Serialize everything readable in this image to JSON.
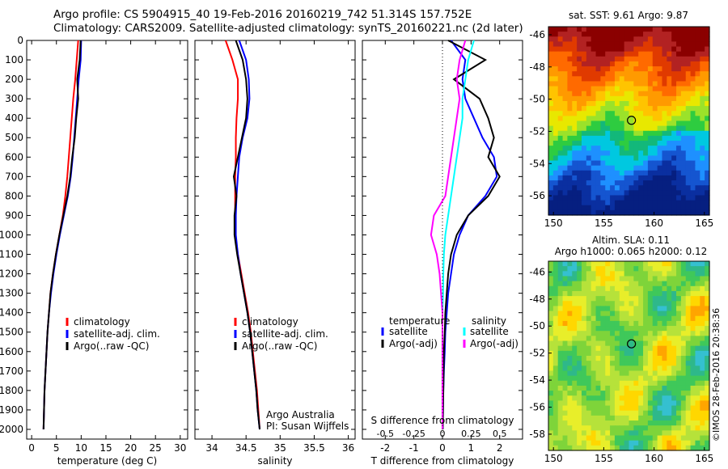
{
  "header": {
    "line1": "Argo profile: CS 5904915_40 19-Feb-2016 20160219_742 51.314S 157.752E",
    "line2": "Climatology: CARS2009. Satellite-adjusted climatology: synTS_20160221.nc (2d later)"
  },
  "watermark": "©IMOS 28-Feb-2016 20:38:36",
  "colors": {
    "climatology": "#ff0000",
    "satellite": "#0000ff",
    "argo": "#000000",
    "salinity_satellite": "#00ffff",
    "salinity_argo": "#ff00ff"
  },
  "chart_data": [
    {
      "type": "line",
      "panel": "temperature",
      "xlabel": "temperature (deg C)",
      "ylabel": "",
      "xlim": [
        -1,
        31.5
      ],
      "ylim": [
        2050,
        0
      ],
      "xticks": [
        0,
        5,
        10,
        15,
        20,
        25,
        30
      ],
      "yticks": [
        0,
        100,
        200,
        300,
        400,
        500,
        600,
        700,
        800,
        900,
        1000,
        1100,
        1200,
        1300,
        1400,
        1500,
        1600,
        1700,
        1800,
        1900,
        2000
      ],
      "legend": {
        "position": "lower-right",
        "entries": [
          "climatology",
          "satellite-adj. clim.",
          "Argo(..raw -QC)"
        ]
      },
      "series": [
        {
          "name": "climatology",
          "color": "#ff0000",
          "x": [
            9.4,
            9.1,
            8.8,
            8.4,
            8.1,
            7.8,
            7.5,
            7.2,
            6.8,
            6.3,
            5.6,
            4.9,
            4.3,
            3.8,
            3.5,
            3.2,
            3.0,
            2.8,
            2.6,
            2.5,
            2.4
          ],
          "y": [
            0,
            100,
            200,
            300,
            400,
            500,
            600,
            700,
            800,
            900,
            1000,
            1100,
            1200,
            1300,
            1400,
            1500,
            1600,
            1700,
            1800,
            1900,
            2000
          ]
        },
        {
          "name": "satellite-adj. clim.",
          "color": "#0000ff",
          "x": [
            10.0,
            9.9,
            9.5,
            9.2,
            8.9,
            8.6,
            8.3,
            7.9,
            7.3,
            6.5,
            5.7,
            5.0,
            4.4,
            3.9,
            3.5,
            3.2,
            3.0,
            2.8,
            2.6,
            2.5,
            2.4
          ],
          "y": [
            0,
            100,
            200,
            300,
            400,
            500,
            600,
            700,
            800,
            900,
            1000,
            1100,
            1200,
            1300,
            1400,
            1500,
            1600,
            1700,
            1800,
            1900,
            2000
          ]
        },
        {
          "name": "Argo(..raw -QC)",
          "color": "#000000",
          "x": [
            9.9,
            9.7,
            9.2,
            9.4,
            9.0,
            8.7,
            8.2,
            7.8,
            7.2,
            6.4,
            5.6,
            4.9,
            4.3,
            3.8,
            3.5,
            3.2,
            3.0,
            2.8,
            2.6,
            2.5,
            2.4
          ],
          "y": [
            0,
            100,
            200,
            300,
            400,
            500,
            600,
            700,
            800,
            900,
            1000,
            1100,
            1200,
            1300,
            1400,
            1500,
            1600,
            1700,
            1800,
            1900,
            2000
          ]
        }
      ]
    },
    {
      "type": "line",
      "panel": "salinity",
      "xlabel": "salinity",
      "ylabel": "",
      "xlim": [
        33.75,
        36.1
      ],
      "ylim": [
        2050,
        0
      ],
      "xticks": [
        34,
        34.5,
        35,
        35.5,
        36
      ],
      "legend": {
        "position": "lower-right",
        "entries": [
          "climatology",
          "satellite-adj. clim.",
          "Argo(..raw -QC)"
        ]
      },
      "annotations": [
        "Argo Australia",
        "PI: Susan Wijffels"
      ],
      "series": [
        {
          "name": "climatology",
          "color": "#ff0000",
          "x": [
            34.2,
            34.3,
            34.38,
            34.38,
            34.36,
            34.35,
            34.35,
            34.34,
            34.34,
            34.34,
            34.34,
            34.38,
            34.43,
            34.48,
            34.53,
            34.57,
            34.6,
            34.63,
            34.66,
            34.68,
            34.7
          ],
          "y": [
            0,
            100,
            200,
            300,
            400,
            500,
            600,
            700,
            800,
            900,
            1000,
            1100,
            1200,
            1300,
            1400,
            1500,
            1600,
            1700,
            1800,
            1900,
            2000
          ]
        },
        {
          "name": "satellite-adj. clim.",
          "color": "#0000ff",
          "x": [
            34.4,
            34.5,
            34.54,
            34.55,
            34.52,
            34.45,
            34.4,
            34.38,
            34.36,
            34.35,
            34.35,
            34.38,
            34.42,
            34.47,
            34.52,
            34.56,
            34.59,
            34.62,
            34.65,
            34.67,
            34.7
          ],
          "y": [
            0,
            100,
            200,
            300,
            400,
            500,
            600,
            700,
            800,
            900,
            1000,
            1100,
            1200,
            1300,
            1400,
            1500,
            1600,
            1700,
            1800,
            1900,
            2000
          ]
        },
        {
          "name": "Argo(..raw -QC)",
          "color": "#000000",
          "x": [
            34.35,
            34.45,
            34.5,
            34.52,
            34.5,
            34.44,
            34.38,
            34.32,
            34.36,
            34.33,
            34.33,
            34.37,
            34.42,
            34.47,
            34.52,
            34.56,
            34.59,
            34.62,
            34.65,
            34.67,
            34.7
          ],
          "y": [
            0,
            100,
            200,
            300,
            400,
            500,
            600,
            700,
            800,
            900,
            1000,
            1100,
            1200,
            1300,
            1400,
            1500,
            1600,
            1700,
            1800,
            1900,
            2000
          ]
        }
      ]
    },
    {
      "type": "line",
      "panel": "difference",
      "xlabel": "T difference from climatology",
      "xlabel_top": "S difference from climatology",
      "xlim": [
        -2.8,
        2.8
      ],
      "ylim": [
        2050,
        0
      ],
      "xticks": [
        -2,
        -1,
        0,
        1,
        2
      ],
      "xticks_s": [
        "-0.5",
        "-0.25",
        "0",
        "0.25",
        "0.5"
      ],
      "legend": {
        "temperature_title": "temperature",
        "salinity_title": "salinity",
        "entries_t": [
          "satellite",
          "Argo(-adj)"
        ],
        "entries_s": [
          "satellite",
          "Argo(-adj)"
        ]
      },
      "series": [
        {
          "name": "satellite",
          "group": "temperature",
          "color": "#0000ff",
          "x": [
            0.3,
            0.8,
            0.7,
            0.8,
            1.1,
            1.4,
            1.8,
            1.9,
            1.5,
            0.9,
            0.6,
            0.4,
            0.3,
            0.2,
            0.15,
            0.1,
            0.08,
            0.05,
            0.03,
            0.02,
            0.01
          ],
          "y": [
            0,
            100,
            200,
            300,
            400,
            500,
            600,
            700,
            800,
            900,
            1000,
            1100,
            1200,
            1300,
            1400,
            1500,
            1600,
            1700,
            1800,
            1900,
            2000
          ]
        },
        {
          "name": "Argo(-adj)",
          "group": "temperature",
          "color": "#000000",
          "x": [
            0.2,
            1.5,
            0.4,
            1.3,
            1.6,
            1.8,
            1.6,
            2.0,
            1.6,
            0.9,
            0.5,
            0.3,
            0.2,
            0.15,
            0.1,
            0.08,
            0.05,
            0.04,
            0.03,
            0.02,
            0.01
          ],
          "y": [
            0,
            100,
            200,
            300,
            400,
            500,
            600,
            700,
            800,
            900,
            1000,
            1100,
            1200,
            1300,
            1400,
            1500,
            1600,
            1700,
            1800,
            1900,
            2000
          ]
        },
        {
          "name": "satellite",
          "group": "salinity",
          "color": "#00ffff",
          "x": [
            1.1,
            0.9,
            0.8,
            0.7,
            0.7,
            0.6,
            0.5,
            0.4,
            0.3,
            0.2,
            0.1,
            0.05,
            0.03,
            0.02,
            0.0,
            0.0,
            0.0,
            0.0,
            0.0,
            0.0,
            0.0
          ],
          "y": [
            0,
            100,
            200,
            300,
            400,
            500,
            600,
            700,
            800,
            900,
            1000,
            1100,
            1200,
            1300,
            1400,
            1500,
            1600,
            1700,
            1800,
            1900,
            2000
          ]
        },
        {
          "name": "Argo(-adj)",
          "group": "salinity",
          "color": "#ff00ff",
          "x": [
            0.8,
            0.6,
            0.5,
            0.6,
            0.5,
            0.4,
            0.3,
            0.2,
            0.1,
            -0.3,
            -0.4,
            -0.2,
            -0.1,
            -0.05,
            0.0,
            0.0,
            0.0,
            0.0,
            0.0,
            0.0,
            0.0
          ],
          "y": [
            0,
            100,
            200,
            300,
            400,
            500,
            600,
            700,
            800,
            900,
            1000,
            1100,
            1200,
            1300,
            1400,
            1500,
            1600,
            1700,
            1800,
            1900,
            2000
          ]
        }
      ]
    },
    {
      "type": "heatmap",
      "panel": "sst-map",
      "title": "sat. SST: 9.61  Argo: 9.87",
      "xlim": [
        149.5,
        165.5
      ],
      "ylim": [
        -57.2,
        -45.5
      ],
      "xticks": [
        150,
        155,
        160,
        165
      ],
      "yticks": [
        -46,
        -48,
        -50,
        -52,
        -54,
        -56
      ],
      "marker": {
        "lon": 157.752,
        "lat": -51.314
      }
    },
    {
      "type": "heatmap",
      "panel": "sla-map",
      "title": "Altim. SLA: 0.11",
      "subtitle": "Argo h1000: 0.065 h2000: 0.12",
      "xlim": [
        149.5,
        165.5
      ],
      "ylim": [
        -59.2,
        -45.2
      ],
      "xticks": [
        150,
        155,
        160,
        165
      ],
      "yticks": [
        -46,
        -48,
        -50,
        -52,
        -54,
        -56,
        -58
      ],
      "marker": {
        "lon": 157.752,
        "lat": -51.314
      }
    }
  ]
}
